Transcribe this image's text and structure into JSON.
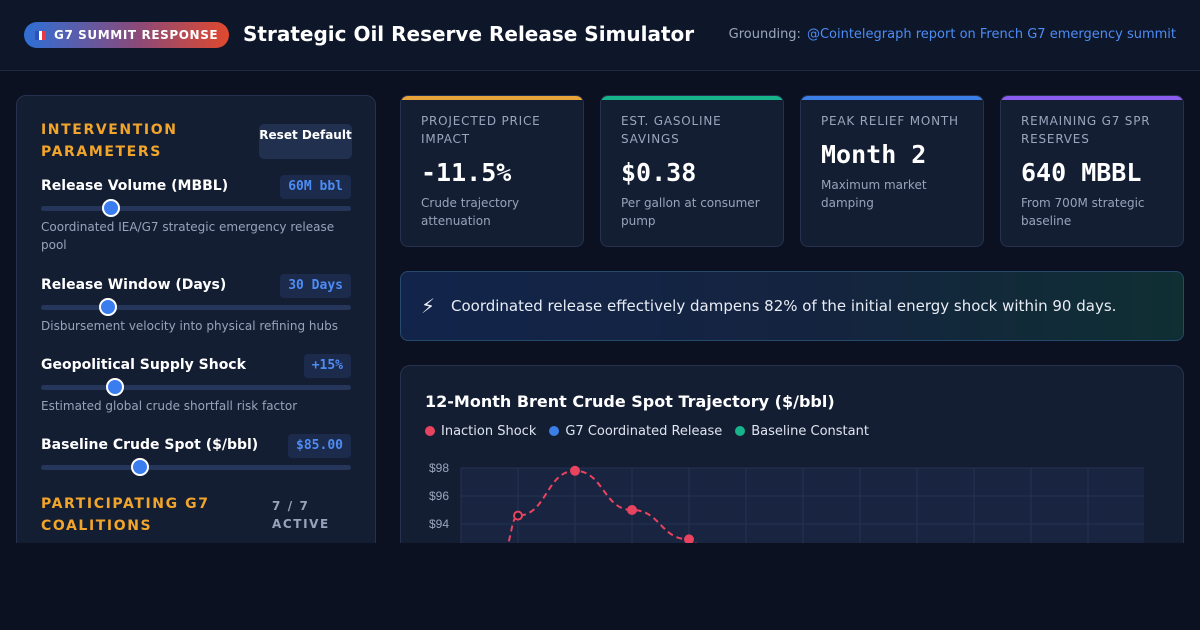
{
  "header": {
    "badge": "G7 SUMMIT RESPONSE",
    "title": "Strategic Oil Reserve Release Simulator",
    "grounding_label": "Grounding:",
    "grounding_link": "@Cointelegraph report on French G7 emergency summit"
  },
  "controls": {
    "section_title": "INTERVENTION PARAMETERS",
    "reset_label": "Reset Default",
    "params": [
      {
        "label": "Release Volume (MBBL)",
        "value": "60M bbl",
        "desc": "Coordinated IEA/G7 strategic emergency release pool",
        "level": 0.225
      },
      {
        "label": "Release Window (Days)",
        "value": "30 Days",
        "desc": "Disbursement velocity into physical refining hubs",
        "level": 0.215
      },
      {
        "label": "Geopolitical Supply Shock",
        "value": "+15%",
        "desc": "Estimated global crude shortfall risk factor",
        "level": 0.24
      },
      {
        "label": "Baseline Crude Spot ($/bbl)",
        "value": "$85.00",
        "desc": "",
        "level": 0.32
      }
    ],
    "coalition_title": "PARTICIPATING G7 COALITIONS",
    "coalition_count": "7 / 7 ACTIVE"
  },
  "kpis": [
    {
      "label": "PROJECTED PRICE IMPACT",
      "value": "-11.5%",
      "sub": "Crude trajectory attenuation",
      "color": "#e8a33a"
    },
    {
      "label": "EST. GASOLINE SAVINGS",
      "value": "$0.38",
      "sub": "Per gallon at consumer pump",
      "color": "#17b38a"
    },
    {
      "label": "PEAK RELIEF MONTH",
      "value": "Month 2",
      "sub": "Maximum market damping",
      "color": "#3b7ee8"
    },
    {
      "label": "REMAINING G7 SPR RESERVES",
      "value": "640 MBBL",
      "sub": "From 700M strategic baseline",
      "color": "#8a5cf0"
    }
  ],
  "insight": {
    "icon": "lightning-icon",
    "text": "Coordinated release effectively dampens 82% of the initial energy shock within 90 days."
  },
  "chart_data": {
    "type": "line",
    "title": "12-Month Brent Crude Spot Trajectory ($/bbl)",
    "series": [
      {
        "name": "Inaction Shock",
        "color": "#e8435f",
        "x": [
          1,
          2,
          3,
          4
        ],
        "values": [
          94.6,
          97.8,
          95.0,
          92.9
        ]
      },
      {
        "name": "G7 Coordinated Release",
        "color": "#3b7ee8",
        "x": [],
        "values": []
      },
      {
        "name": "Baseline Constant",
        "color": "#17b38a",
        "x": [],
        "values": []
      }
    ],
    "yticks": [
      "$98",
      "$96",
      "$94"
    ],
    "ylim": [
      94,
      98
    ],
    "grid": true,
    "legend": "top-left"
  }
}
